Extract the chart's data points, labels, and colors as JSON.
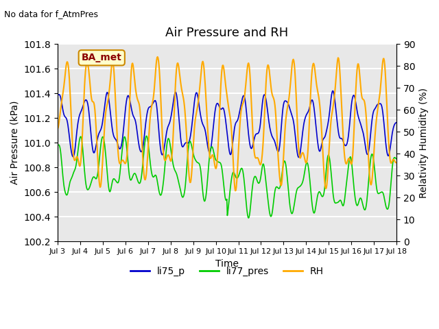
{
  "title": "Air Pressure and RH",
  "top_left_text": "No data for f_AtmPres",
  "box_label": "BA_met",
  "xlabel": "Time",
  "ylabel_left": "Air Pressure (kPa)",
  "ylabel_right": "Relativity Humidity (%)",
  "ylim_left": [
    100.2,
    101.8
  ],
  "ylim_right": [
    0,
    90
  ],
  "yticks_left": [
    100.2,
    100.4,
    100.6,
    100.8,
    101.0,
    101.2,
    101.4,
    101.6,
    101.8
  ],
  "yticks_right": [
    0,
    10,
    20,
    30,
    40,
    50,
    60,
    70,
    80,
    90
  ],
  "xtick_labels": [
    "Jul 3",
    "Jul 4",
    "Jul 5",
    "Jul 6",
    "Jul 7",
    "Jul 8",
    "Jul 9",
    "Jul 10",
    "Jul 11",
    "Jul 12",
    "Jul 13",
    "Jul 14",
    "Jul 15",
    "Jul 16",
    "Jul 17",
    "Jul 18"
  ],
  "background_color": "#e8e8e8",
  "grid_color": "#ffffff",
  "line_li75_p_color": "#0000cc",
  "line_li77_pres_color": "#00cc00",
  "line_RH_color": "#ffaa00",
  "legend_entries": [
    "li75_p",
    "li77_pres",
    "RH"
  ],
  "figsize": [
    6.4,
    4.8
  ],
  "dpi": 100
}
